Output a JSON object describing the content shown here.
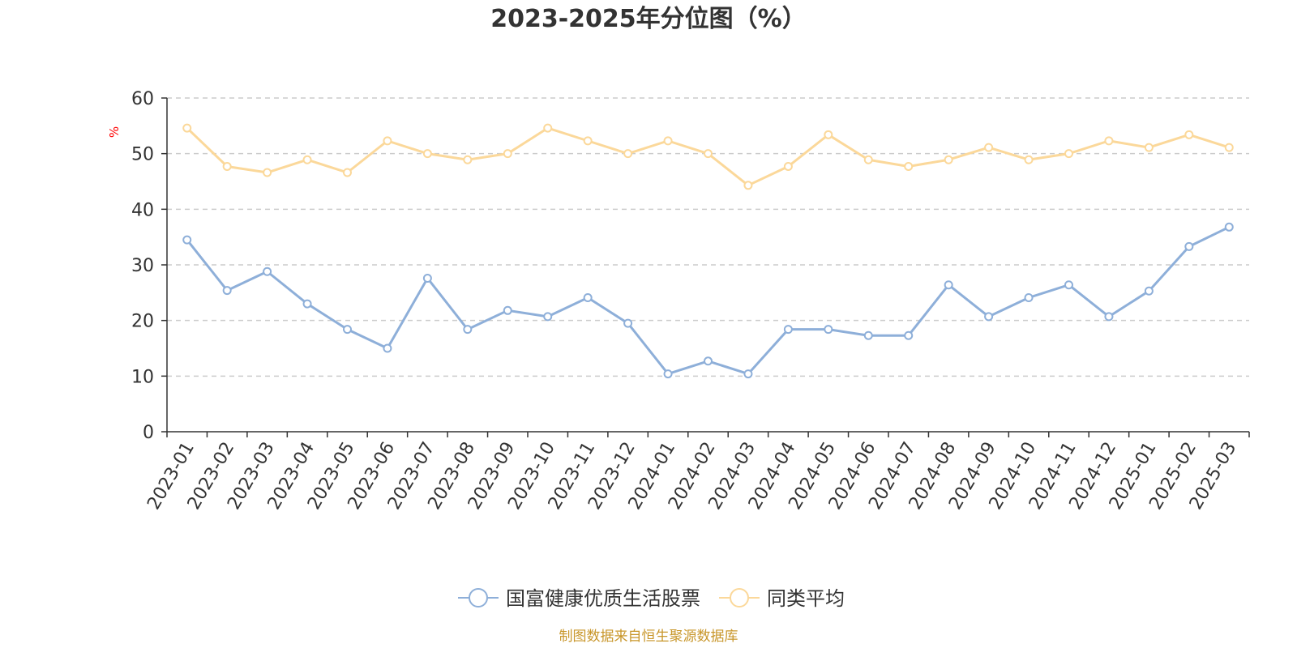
{
  "chart_data": {
    "type": "line",
    "title": "2023-2025年分位图（%）",
    "ylabel": "%",
    "xlabel": "",
    "ylim": [
      0,
      60
    ],
    "yticks": [
      0,
      10,
      20,
      30,
      40,
      50,
      60
    ],
    "grid": true,
    "legend_position": "bottom",
    "categories": [
      "2023-01",
      "2023-02",
      "2023-03",
      "2023-04",
      "2023-05",
      "2023-06",
      "2023-07",
      "2023-08",
      "2023-09",
      "2023-10",
      "2023-11",
      "2023-12",
      "2024-01",
      "2024-02",
      "2024-03",
      "2024-04",
      "2024-05",
      "2024-06",
      "2024-07",
      "2024-08",
      "2024-09",
      "2024-10",
      "2024-11",
      "2024-12",
      "2025-01",
      "2025-02",
      "2025-03"
    ],
    "series": [
      {
        "name": "国富健康优质生活股票",
        "color": "#8eafd9",
        "values": [
          34.5,
          25.4,
          28.8,
          23.0,
          18.4,
          15.0,
          27.6,
          18.4,
          21.8,
          20.7,
          24.1,
          19.5,
          10.4,
          12.7,
          10.4,
          18.4,
          18.4,
          17.3,
          17.3,
          26.4,
          20.7,
          24.1,
          26.4,
          20.7,
          25.3,
          33.3,
          36.8
        ]
      },
      {
        "name": "同类平均",
        "color": "#fbd89a",
        "values": [
          54.6,
          47.7,
          46.6,
          48.9,
          46.6,
          52.3,
          50.0,
          48.9,
          50.0,
          54.6,
          52.3,
          50.0,
          52.3,
          50.0,
          44.3,
          47.7,
          53.4,
          48.9,
          47.7,
          48.9,
          51.1,
          48.9,
          50.0,
          52.3,
          51.1,
          53.4,
          51.1
        ]
      }
    ]
  },
  "source_text": "制图数据来自恒生聚源数据库",
  "colors": {
    "axis": "#333333",
    "grid": "#cccccc",
    "unit": "#ff0000",
    "source": "#c8962a"
  }
}
